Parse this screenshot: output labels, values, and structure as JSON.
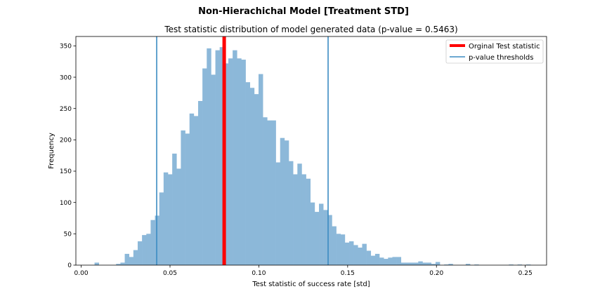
{
  "suptitle": "Non-Hierachichal Model [Treatment STD]",
  "chart_data": {
    "type": "bar",
    "title": "Test statistic distribution of model generated data (p-value = 0.5463)",
    "xlabel": "Test statistic of success rate [std]",
    "ylabel": "Frequency",
    "xlim": [
      -0.003,
      0.262
    ],
    "ylim": [
      0,
      365
    ],
    "xticks": [
      0.0,
      0.05,
      0.1,
      0.15,
      0.2,
      0.25
    ],
    "xtick_labels": [
      "0.00",
      "0.05",
      "0.10",
      "0.15",
      "0.20",
      "0.25"
    ],
    "yticks": [
      0,
      50,
      100,
      150,
      200,
      250,
      300,
      350
    ],
    "ytick_labels": [
      "0",
      "50",
      "100",
      "150",
      "200",
      "250",
      "300",
      "350"
    ],
    "bin_start": 0.0075,
    "bin_width": 0.00243,
    "counts": [
      4,
      0,
      0,
      0,
      0,
      2,
      4,
      18,
      13,
      24,
      38,
      48,
      50,
      72,
      79,
      116,
      148,
      145,
      178,
      154,
      215,
      210,
      242,
      238,
      262,
      314,
      346,
      304,
      343,
      348,
      322,
      330,
      343,
      330,
      328,
      292,
      283,
      273,
      305,
      236,
      231,
      231,
      164,
      203,
      199,
      166,
      145,
      162,
      145,
      138,
      100,
      85,
      98,
      88,
      80,
      62,
      50,
      49,
      36,
      38,
      32,
      28,
      34,
      23,
      15,
      18,
      12,
      10,
      12,
      13,
      13,
      4,
      4,
      4,
      4,
      6,
      4,
      4,
      2,
      5,
      0,
      1,
      2,
      0,
      0,
      0,
      2,
      0,
      1,
      0,
      0,
      0,
      0,
      0,
      0,
      0,
      1,
      0,
      1,
      0,
      1
    ],
    "bar_color": "#8cb8d9",
    "original_statistic": 0.0805,
    "original_color": "#ff0000",
    "thresholds": [
      0.0425,
      0.139
    ],
    "threshold_color": "#3b8bc2",
    "legend": {
      "placement": "top-right",
      "entries": [
        "Orginal Test statistic",
        "p-value thresholds"
      ]
    }
  }
}
